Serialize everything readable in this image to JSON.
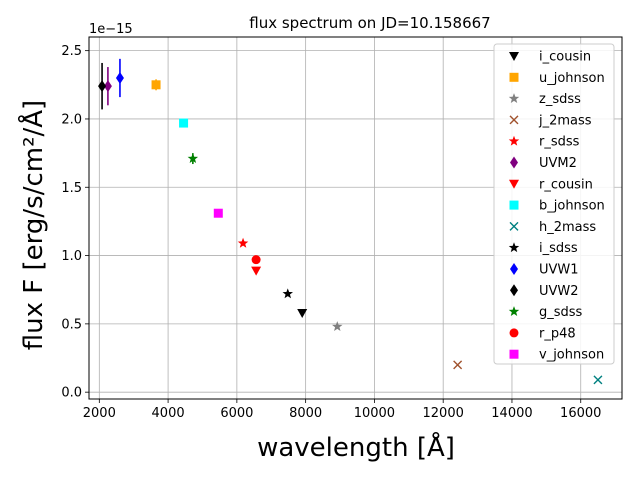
{
  "chart_data": {
    "type": "scatter",
    "title": "flux spectrum on JD=10.158667",
    "xlabel": "wavelength [Å]",
    "ylabel": "flux F [erg/s/cm²/Å]",
    "y_offset_label": "1e−15",
    "xlim": [
      1700,
      17200
    ],
    "ylim": [
      -0.05,
      2.6
    ],
    "xticks": [
      2000,
      4000,
      6000,
      8000,
      10000,
      12000,
      14000,
      16000
    ],
    "yticks": [
      0.0,
      0.5,
      1.0,
      1.5,
      2.0,
      2.5
    ],
    "xtick_labels": [
      "2000",
      "4000",
      "6000",
      "8000",
      "10000",
      "12000",
      "14000",
      "16000"
    ],
    "ytick_labels": [
      "0.0",
      "0.5",
      "1.0",
      "1.5",
      "2.0",
      "2.5"
    ],
    "grid": true,
    "legend_position": "right",
    "series": [
      {
        "name": "i_cousin",
        "marker": "triangle-down",
        "color": "#000000",
        "points": [
          {
            "x": 7900,
            "y": 0.58
          }
        ]
      },
      {
        "name": "u_johnson",
        "marker": "square",
        "color": "#ffa500",
        "points": [
          {
            "x": 3650,
            "y": 2.25,
            "err": 0.04
          }
        ]
      },
      {
        "name": "z_sdss",
        "marker": "star",
        "color": "#808080",
        "points": [
          {
            "x": 8920,
            "y": 0.48
          }
        ]
      },
      {
        "name": "j_2mass",
        "marker": "x",
        "color": "#a0522d",
        "points": [
          {
            "x": 12420,
            "y": 0.2
          }
        ]
      },
      {
        "name": "r_sdss",
        "marker": "star",
        "color": "#ff0000",
        "points": [
          {
            "x": 6180,
            "y": 1.09
          }
        ]
      },
      {
        "name": "UVM2",
        "marker": "diamond",
        "color": "#800080",
        "points": [
          {
            "x": 2250,
            "y": 2.24,
            "err": 0.14
          }
        ]
      },
      {
        "name": "r_cousin",
        "marker": "triangle-down",
        "color": "#ff0000",
        "points": [
          {
            "x": 6560,
            "y": 0.89
          }
        ]
      },
      {
        "name": "b_johnson",
        "marker": "square",
        "color": "#00ffff",
        "points": [
          {
            "x": 4450,
            "y": 1.97
          }
        ]
      },
      {
        "name": "h_2mass",
        "marker": "x",
        "color": "#008080",
        "points": [
          {
            "x": 16500,
            "y": 0.09
          }
        ]
      },
      {
        "name": "i_sdss",
        "marker": "star",
        "color": "#000000",
        "points": [
          {
            "x": 7480,
            "y": 0.72
          }
        ]
      },
      {
        "name": "UVW1",
        "marker": "diamond",
        "color": "#0000ff",
        "points": [
          {
            "x": 2600,
            "y": 2.3,
            "err": 0.14
          }
        ]
      },
      {
        "name": "UVW2",
        "marker": "diamond",
        "color": "#000000",
        "points": [
          {
            "x": 2080,
            "y": 2.24,
            "err": 0.17
          }
        ]
      },
      {
        "name": "g_sdss",
        "marker": "star",
        "color": "#008000",
        "points": [
          {
            "x": 4720,
            "y": 1.71,
            "err": 0.04
          }
        ]
      },
      {
        "name": "r_p48",
        "marker": "circle",
        "color": "#ff0000",
        "points": [
          {
            "x": 6560,
            "y": 0.97
          }
        ]
      },
      {
        "name": "v_johnson",
        "marker": "square",
        "color": "#ff00ff",
        "points": [
          {
            "x": 5460,
            "y": 1.31
          }
        ]
      }
    ]
  }
}
